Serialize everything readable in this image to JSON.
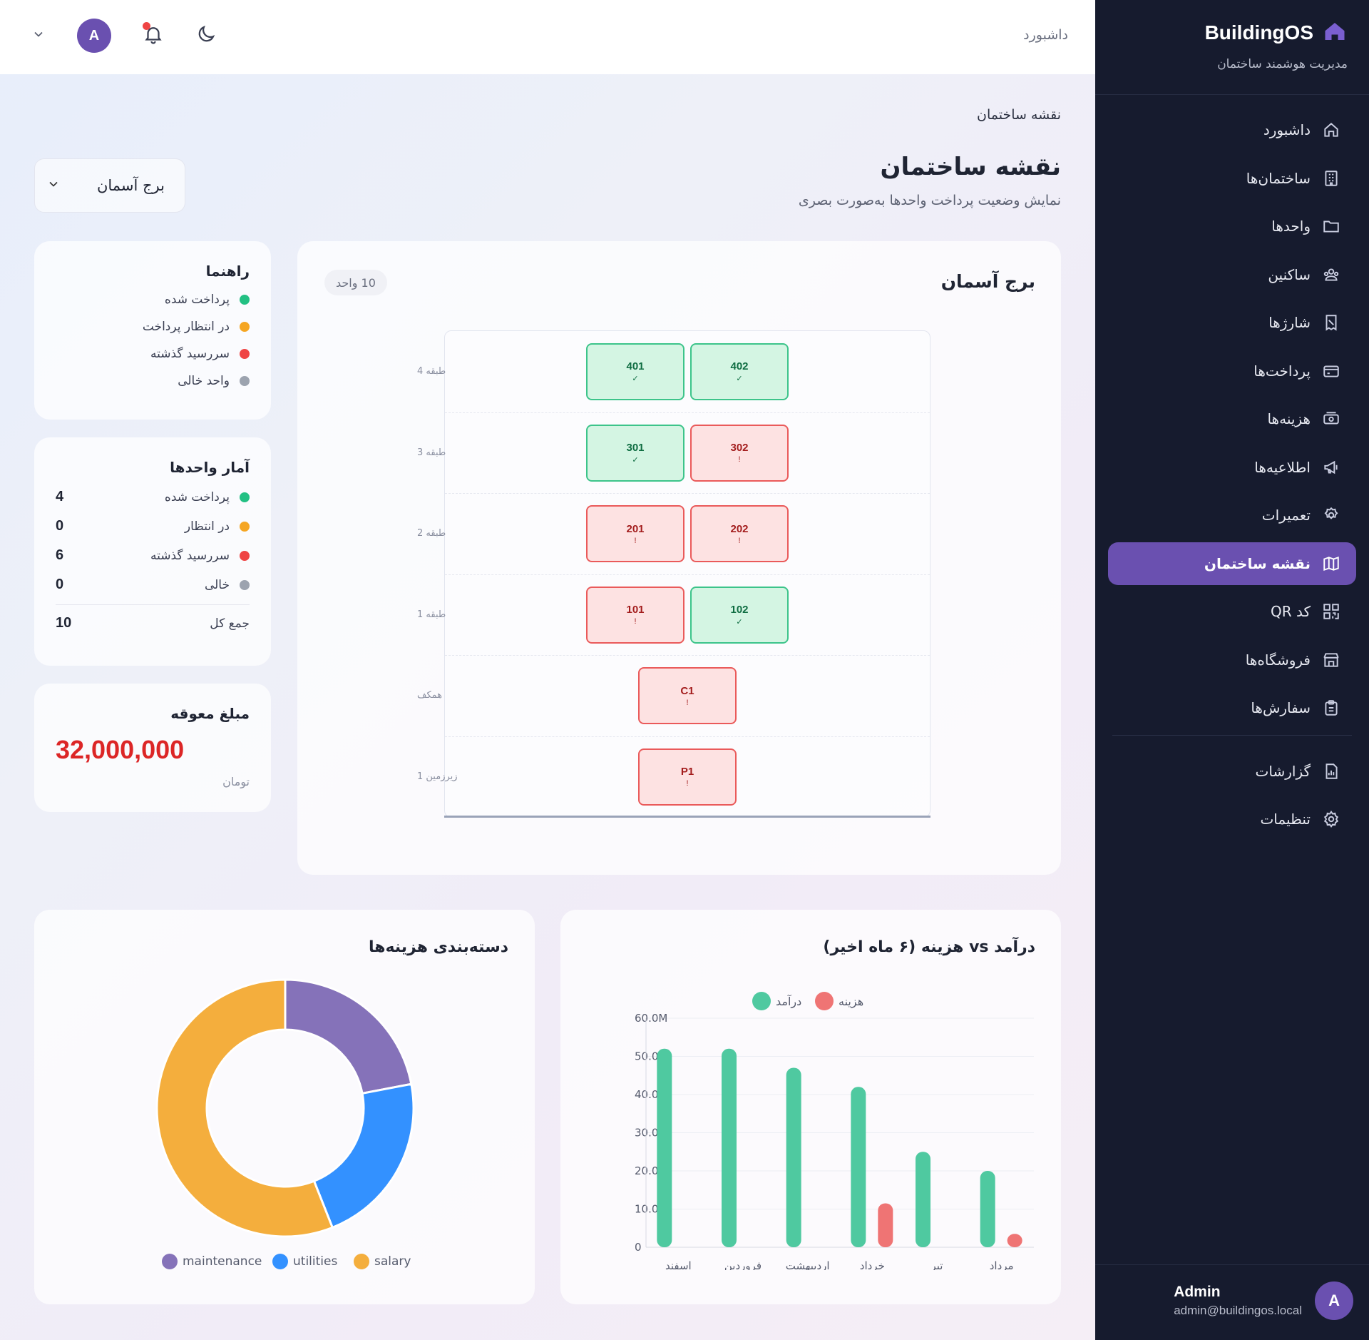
{
  "sidebar": {
    "brand": "BuildingOS",
    "brand_sub": "مدیریت هوشمند ساختمان",
    "items": [
      {
        "label": "داشبورد",
        "icon": "home-icon"
      },
      {
        "label": "ساختمان‌ها",
        "icon": "building-icon"
      },
      {
        "label": "واحدها",
        "icon": "folder-icon"
      },
      {
        "label": "ساکنین",
        "icon": "users-icon"
      },
      {
        "label": "شارژها",
        "icon": "receipt-icon"
      },
      {
        "label": "پرداخت‌ها",
        "icon": "card-icon"
      },
      {
        "label": "هزینه‌ها",
        "icon": "cash-icon"
      },
      {
        "label": "اطلاعیه‌ها",
        "icon": "megaphone-icon"
      },
      {
        "label": "تعمیرات",
        "icon": "wrench-icon"
      },
      {
        "label": "نقشه ساختمان",
        "icon": "map-icon"
      },
      {
        "label": "کد QR",
        "icon": "qr-icon"
      },
      {
        "label": "فروشگاه‌ها",
        "icon": "store-icon"
      },
      {
        "label": "سفارش‌ها",
        "icon": "clipboard-icon"
      },
      {
        "label": "گزارشات",
        "icon": "report-icon"
      },
      {
        "label": "تنظیمات",
        "icon": "gear-icon"
      }
    ],
    "active_index": 9,
    "user": {
      "name": "Admin",
      "email": "admin@buildingos.local",
      "initial": "A"
    }
  },
  "topbar": {
    "breadcrumb": "داشبورد",
    "avatar_initial": "A"
  },
  "page": {
    "crumb": "نقشه ساختمان",
    "title": "نقشه ساختمان",
    "subtitle": "نمایش وضعیت پرداخت واحدها به‌صورت بصری"
  },
  "building_select": {
    "value": "برج آسمان"
  },
  "guide": {
    "title": "راهنما",
    "items": [
      {
        "label": "پرداخت شده",
        "color": "#22c083"
      },
      {
        "label": "در انتظار پرداخت",
        "color": "#f5a623"
      },
      {
        "label": "سررسید گذشته",
        "color": "#ef4444"
      },
      {
        "label": "واحد خالی",
        "color": "#9ca3af"
      }
    ]
  },
  "stats": {
    "title": "آمار واحدها",
    "rows": [
      {
        "label": "پرداخت شده",
        "value": "4",
        "color": "#22c083"
      },
      {
        "label": "در انتظار",
        "value": "0",
        "color": "#f5a623"
      },
      {
        "label": "سررسید گذشته",
        "value": "6",
        "color": "#ef4444"
      },
      {
        "label": "خالی",
        "value": "0",
        "color": "#9ca3af"
      }
    ],
    "total_label": "جمع کل",
    "total_value": "10"
  },
  "overdue": {
    "title": "مبلغ معوقه",
    "amount": "32,000,000",
    "unit": "تومان"
  },
  "floorplan": {
    "title": "برج آسمان",
    "count": "10 واحد",
    "floors": [
      {
        "label": "طبقه 4",
        "units": [
          {
            "num": "401",
            "status": "paid",
            "mark": "✓"
          },
          {
            "num": "402",
            "status": "paid",
            "mark": "✓"
          }
        ]
      },
      {
        "label": "طبقه 3",
        "units": [
          {
            "num": "301",
            "status": "paid",
            "mark": "✓"
          },
          {
            "num": "302",
            "status": "overdue",
            "mark": "!"
          }
        ]
      },
      {
        "label": "طبقه 2",
        "units": [
          {
            "num": "201",
            "status": "overdue",
            "mark": "!"
          },
          {
            "num": "202",
            "status": "overdue",
            "mark": "!"
          }
        ]
      },
      {
        "label": "طبقه 1",
        "units": [
          {
            "num": "101",
            "status": "overdue",
            "mark": "!"
          },
          {
            "num": "102",
            "status": "paid",
            "mark": "✓"
          }
        ]
      },
      {
        "label": "همکف",
        "units": [
          {
            "num": "C1",
            "status": "overdue",
            "mark": "!"
          }
        ]
      },
      {
        "label": "زیرزمین 1",
        "units": [
          {
            "num": "P1",
            "status": "overdue",
            "mark": "!"
          }
        ]
      }
    ]
  },
  "chart_data": [
    {
      "type": "bar",
      "title": "درآمد vs هزینه (۶ ماه اخیر)",
      "categories": [
        "اسفند",
        "فروردین",
        "اردیبهشت",
        "خرداد",
        "تیر",
        "مرداد"
      ],
      "series": [
        {
          "name": "درآمد",
          "color": "#4fc9a0",
          "values": [
            52000000,
            52000000,
            47000000,
            42000000,
            25000000,
            20000000
          ]
        },
        {
          "name": "هزینه",
          "color": "#ef7474",
          "values": [
            0,
            0,
            0,
            11500000,
            0,
            3500000
          ]
        }
      ],
      "yticks": [
        "0",
        "10.0M",
        "20.0M",
        "30.0M",
        "40.0M",
        "50.0M",
        "60.0M"
      ],
      "ylim": [
        0,
        60000000
      ],
      "grid": true,
      "legend": "top"
    },
    {
      "type": "pie",
      "title": "دسته‌بندی هزینه‌ها",
      "labels": [
        "maintenance",
        "utilities",
        "salary"
      ],
      "values": [
        22,
        22,
        56
      ],
      "colors": [
        "#8572b9",
        "#3391ff",
        "#f4ae3d"
      ],
      "legend": "bottom"
    }
  ]
}
